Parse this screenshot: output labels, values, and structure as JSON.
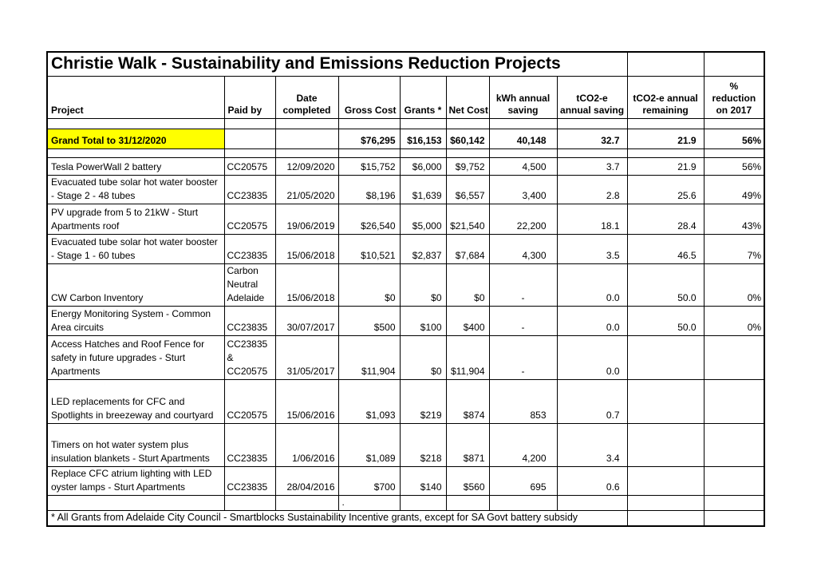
{
  "title": "Christie Walk - Sustainability and Emissions Reduction Projects",
  "columns": [
    "Project",
    "Paid by",
    "Date completed",
    "Gross Cost",
    "Grants *",
    "Net Cost",
    "kWh annual saving",
    "tCO2-e annual saving",
    "tCO2-e annual remaining",
    "% reduction on 2017"
  ],
  "grand_total": {
    "project": "Grand Total to 31/12/2020",
    "paid_by": "",
    "date": "",
    "gross": "$76,295",
    "grants": "$16,153",
    "net": "$60,142",
    "kwh": "40,148",
    "tco2_saving": "32.7",
    "tco2_remaining": "21.9",
    "pct": "56%"
  },
  "rows": [
    {
      "project": "Tesla PowerWall 2 battery",
      "paid_by": "CC20575",
      "date": "12/09/2020",
      "gross": "$15,752",
      "grants": "$6,000",
      "net": "$9,752",
      "kwh": "4,500",
      "tco2_saving": "3.7",
      "tco2_remaining": "21.9",
      "pct": "56%"
    },
    {
      "project": "Evacuated tube solar hot water booster - Stage 2 - 48 tubes",
      "paid_by": "CC23835",
      "date": "21/05/2020",
      "gross": "$8,196",
      "grants": "$1,639",
      "net": "$6,557",
      "kwh": "3,400",
      "tco2_saving": "2.8",
      "tco2_remaining": "25.6",
      "pct": "49%"
    },
    {
      "project": "PV upgrade from 5 to 21kW - Sturt Apartments roof",
      "paid_by": "CC20575",
      "date": "19/06/2019",
      "gross": "$26,540",
      "grants": "$5,000",
      "net": "$21,540",
      "kwh": "22,200",
      "tco2_saving": "18.1",
      "tco2_remaining": "28.4",
      "pct": "43%"
    },
    {
      "project": "Evacuated tube solar hot water booster - Stage 1 - 60 tubes",
      "paid_by": "CC23835",
      "date": "15/06/2018",
      "gross": "$10,521",
      "grants": "$2,837",
      "net": "$7,684",
      "kwh": "4,300",
      "tco2_saving": "3.5",
      "tco2_remaining": "46.5",
      "pct": "7%"
    },
    {
      "project": "CW Carbon Inventory",
      "paid_by": "Carbon\nNeutral\nAdelaide",
      "date": "15/06/2018",
      "gross": "$0",
      "grants": "$0",
      "net": "$0",
      "kwh": "-",
      "tco2_saving": "0.0",
      "tco2_remaining": "50.0",
      "pct": "0%"
    },
    {
      "project": "Energy Monitoring System - Common Area circuits",
      "paid_by": "CC23835",
      "date": "30/07/2017",
      "gross": "$500",
      "grants": "$100",
      "net": "$400",
      "kwh": "-",
      "tco2_saving": "0.0",
      "tco2_remaining": "50.0",
      "pct": "0%"
    },
    {
      "project": "Access Hatches and Roof Fence for safety in future upgrades - Sturt Apartments",
      "paid_by": "CC23835\n&\nCC20575",
      "date": "31/05/2017",
      "gross": "$11,904",
      "grants": "$0",
      "net": "$11,904",
      "kwh": "-",
      "tco2_saving": "0.0",
      "tco2_remaining": "",
      "pct": ""
    },
    {
      "project": "LED replacements for CFC and Spotlights in breezeway and courtyard",
      "paid_by": "CC20575",
      "date": "15/06/2016",
      "gross": "$1,093",
      "grants": "$219",
      "net": "$874",
      "kwh": "853",
      "tco2_saving": "0.7",
      "tco2_remaining": "",
      "pct": ""
    },
    {
      "project": "Timers on hot water system plus insulation blankets - Sturt Apartments",
      "paid_by": "CC23835",
      "date": "1/06/2016",
      "gross": "$1,089",
      "grants": "$218",
      "net": "$871",
      "kwh": "4,200",
      "tco2_saving": "3.4",
      "tco2_remaining": "",
      "pct": ""
    },
    {
      "project": "Replace CFC atrium lighting with LED oyster lamps - Sturt Apartments",
      "paid_by": "CC23835",
      "date": "28/04/2016",
      "gross": "$700",
      "grants": "$140",
      "net": "$560",
      "kwh": "695",
      "tco2_saving": "0.6",
      "tco2_remaining": "",
      "pct": ""
    }
  ],
  "dot_row": {
    "gross": "."
  },
  "footnote": "* All Grants from Adelaide City Council - Smartblocks Sustainability Incentive grants, except for SA Govt battery subsidy",
  "colors": {
    "highlight": "#ffff00",
    "border": "#000000",
    "text": "#000000",
    "background": "#ffffff"
  }
}
